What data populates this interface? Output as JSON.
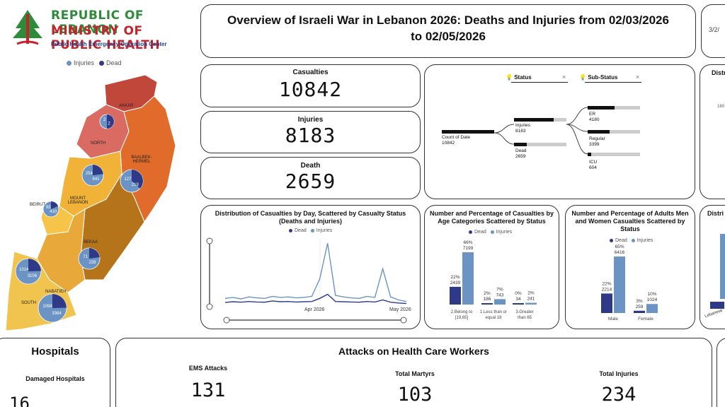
{
  "logo": {
    "line1": "REPUBLIC OF LEBANON",
    "line2": "MINISTRY OF PUBLIC HEALTH",
    "line3": "Public Health Emergency Operation Center"
  },
  "map_legend": {
    "injuries": "Injuries",
    "dead": "Dead"
  },
  "title": {
    "line1": "Overview of Israeli War in Lebanon 2026: Deaths and Injuries from 02/03/2026",
    "line2": "to 02/05/2026"
  },
  "date_filter": "3/2/",
  "kpis": {
    "casualties_label": "Casualties",
    "casualties_value": "10842",
    "injuries_label": "Injuries",
    "injuries_value": "8183",
    "death_label": "Death",
    "death_value": "2659"
  },
  "tree": {
    "status_label": "Status",
    "substatus_label": "Sub-Status",
    "root_label": "Count of Date",
    "root_value": "10842",
    "injuries_label": "Injuries",
    "injuries_value": "8183",
    "dead_label": "Dead",
    "dead_value": "2659",
    "er_label": "ER",
    "er_value": "4180",
    "regular_label": "Regular",
    "regular_value": "3399",
    "icu_label": "ICU",
    "icu_value": "604",
    "root_fraction": 1.0,
    "injuries_fraction": 0.755,
    "dead_fraction": 0.245,
    "er_fraction": 0.511,
    "regular_fraction": 0.415,
    "icu_fraction": 0.074
  },
  "right_edge": {
    "top_title": "Distr",
    "top_tick": "160",
    "mid_title": "Distri",
    "mid_label": "Lebanese"
  },
  "map": {
    "regions": [
      "AKKAR",
      "NORTH",
      "BAALBEK-HERMEL",
      "MOUNT LEBANON",
      "BEIRUT",
      "BEKAA",
      "NABATIEH",
      "SOUTH"
    ],
    "pies": [
      {
        "region": "AKKAR",
        "dead": "2",
        "injured": "2"
      },
      {
        "region": "BAALBEK-HERMEL",
        "dead": "127",
        "injured": "219"
      },
      {
        "region": "MOUNT LEBANON",
        "dead": "254",
        "injured": "841"
      },
      {
        "region": "BEIRUT",
        "dead": "93",
        "injured": "410"
      },
      {
        "region": "BEKAA",
        "dead": "71",
        "injured": "239"
      },
      {
        "region": "SOUTH-WEST",
        "dead": "1014",
        "injured": "3106"
      },
      {
        "region": "SOUTH",
        "dead": "1098",
        "injured": "3364"
      }
    ]
  },
  "colors": {
    "dead": "#2e3a87",
    "injured": "#6b93c4",
    "border": "#333333"
  },
  "charts": {
    "daily": {
      "title": "Distribution of Casualties by Day, Scattered by Casualty Status (Deaths and Injuries)",
      "legend_dead": "Dead",
      "legend_injuries": "Injuries",
      "tick1": "Apr 2026",
      "tick2": "May 2026"
    },
    "age": {
      "title": "Number and Percentage of Casualties by Age Categories Scattered by Status",
      "legend_dead": "Dead",
      "legend_injuries": "Injuries",
      "labels": [
        "22%\n2439",
        "66%\n7199",
        "2%\n186",
        "7%\n743",
        "0%\n34",
        "2%\n241"
      ],
      "cats": [
        "2.Belong to [19,65]",
        "1.Less than or equal 18",
        "3.Greater than 65"
      ]
    },
    "adults": {
      "title": "Number and Percentage of Adults Men and Women Casualties Scattered by Status",
      "legend_dead": "Dead",
      "legend_injuries": "Injuries",
      "cats": [
        "Male",
        "Female"
      ]
    }
  },
  "chart_data": [
    {
      "type": "line",
      "title": "Distribution of Casualties by Day, Scattered by Casualty Status (Deaths and Injuries)",
      "x": [
        "2026-03-02",
        "2026-03-05",
        "2026-03-08",
        "2026-03-11",
        "2026-03-14",
        "2026-03-17",
        "2026-03-20",
        "2026-03-23",
        "2026-03-26",
        "2026-03-29",
        "2026-04-01",
        "2026-04-04",
        "2026-04-07",
        "2026-04-08",
        "2026-04-09",
        "2026-04-12",
        "2026-04-15",
        "2026-04-18",
        "2026-04-21",
        "2026-04-24",
        "2026-04-26",
        "2026-04-28",
        "2026-04-30",
        "2026-05-02"
      ],
      "series": [
        {
          "name": "Dead",
          "values": [
            40,
            55,
            45,
            60,
            50,
            45,
            70,
            55,
            60,
            50,
            55,
            60,
            120,
            200,
            60,
            55,
            50,
            45,
            60,
            50,
            90,
            45,
            30,
            20
          ]
        },
        {
          "name": "Injuries",
          "values": [
            120,
            140,
            110,
            150,
            130,
            120,
            160,
            140,
            150,
            130,
            140,
            160,
            500,
            1200,
            180,
            150,
            130,
            120,
            160,
            140,
            700,
            150,
            90,
            60
          ]
        }
      ]
    },
    {
      "type": "bar",
      "title": "Number and Percentage of Casualties by Age Categories Scattered by Status",
      "categories": [
        "2.Belong to [19,65]",
        "1.Less than or equal 18",
        "3.Greater than 65"
      ],
      "series": [
        {
          "name": "Dead",
          "values": [
            2439,
            186,
            34
          ]
        },
        {
          "name": "Injuries",
          "values": [
            7199,
            743,
            241
          ]
        }
      ]
    },
    {
      "type": "bar",
      "title": "Number and Percentage of Adults Men and Women Casualties Scattered by Status",
      "categories": [
        "Male",
        "Female"
      ],
      "series": [
        {
          "name": "Dead",
          "values": [
            2214,
            259
          ]
        },
        {
          "name": "Injuries",
          "values": [
            6416,
            1024
          ]
        }
      ],
      "labels": {
        "dead": [
          "22%\n2214",
          "3%\n259"
        ],
        "injuries": [
          "65%\n6416",
          "10%\n1024"
        ]
      }
    }
  ],
  "hospitals": {
    "title": "Hospitals",
    "damaged_label": "Damaged Hospitals",
    "damaged_value": "16"
  },
  "attacks": {
    "title": "Attacks on Health Care Workers",
    "ems_label": "EMS Attacks",
    "ems_value": "131",
    "martyrs_label": "Total Martyrs",
    "martyrs_value": "103",
    "injuries_label": "Total Injuries",
    "injuries_value": "234"
  }
}
